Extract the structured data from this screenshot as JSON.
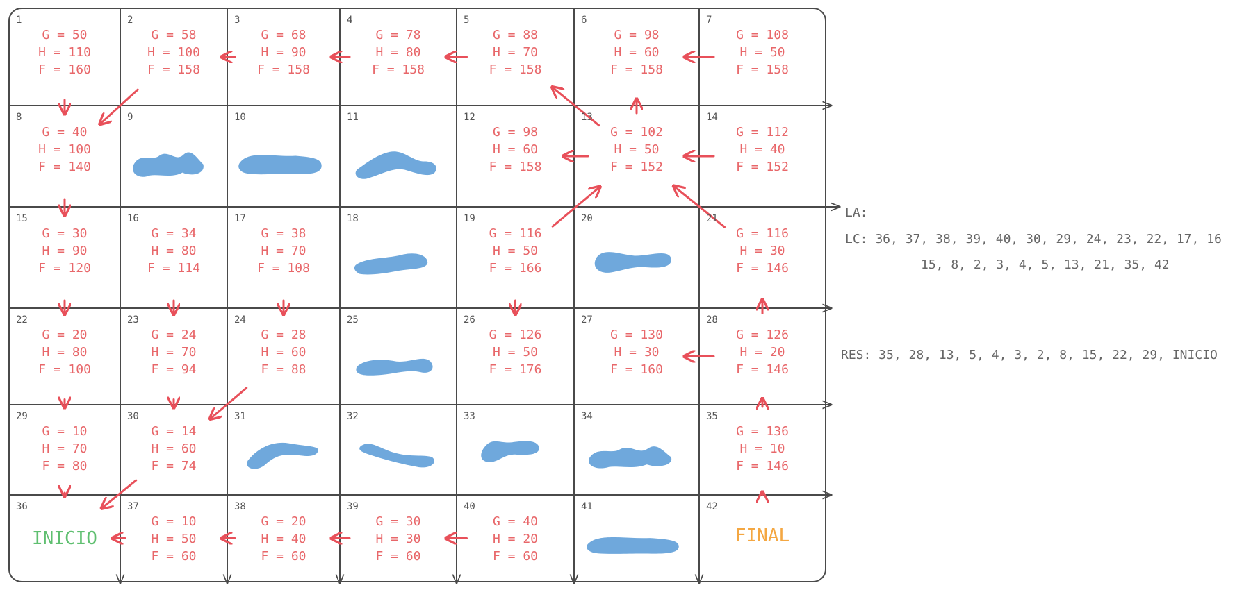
{
  "cells": [
    {
      "n": "1",
      "g": "G = 50",
      "h": "H = 110",
      "f": "F = 160"
    },
    {
      "n": "2",
      "g": "G = 58",
      "h": "H = 100",
      "f": "F = 158"
    },
    {
      "n": "3",
      "g": "G = 68",
      "h": "H = 90",
      "f": "F = 158"
    },
    {
      "n": "4",
      "g": "G = 78",
      "h": "H = 80",
      "f": "F = 158"
    },
    {
      "n": "5",
      "g": "G = 88",
      "h": "H = 70",
      "f": "F = 158"
    },
    {
      "n": "6",
      "g": "G = 98",
      "h": "H = 60",
      "f": "F = 158"
    },
    {
      "n": "7",
      "g": "G = 108",
      "h": "H = 50",
      "f": "F = 158"
    },
    {
      "n": "8",
      "g": "G = 40",
      "h": "H = 100",
      "f": "F = 140"
    },
    {
      "n": "9",
      "wall": true
    },
    {
      "n": "10",
      "wall": true
    },
    {
      "n": "11",
      "wall": true
    },
    {
      "n": "12",
      "g": "G = 98",
      "h": "H = 60",
      "f": "F = 158"
    },
    {
      "n": "13",
      "g": "G = 102",
      "h": "H = 50",
      "f": "F = 152"
    },
    {
      "n": "14",
      "g": "G = 112",
      "h": "H = 40",
      "f": "F = 152"
    },
    {
      "n": "15",
      "g": "G = 30",
      "h": "H = 90",
      "f": "F = 120"
    },
    {
      "n": "16",
      "g": "G = 34",
      "h": "H = 80",
      "f": "F = 114"
    },
    {
      "n": "17",
      "g": "G = 38",
      "h": "H = 70",
      "f": "F = 108"
    },
    {
      "n": "18",
      "wall": true
    },
    {
      "n": "19",
      "g": "G = 116",
      "h": "H = 50",
      "f": "F = 166"
    },
    {
      "n": "20",
      "wall": true
    },
    {
      "n": "21",
      "g": "G = 116",
      "h": "H = 30",
      "f": "F = 146"
    },
    {
      "n": "22",
      "g": "G = 20",
      "h": "H = 80",
      "f": "F = 100"
    },
    {
      "n": "23",
      "g": "G = 24",
      "h": "H = 70",
      "f": "F = 94"
    },
    {
      "n": "24",
      "g": "G = 28",
      "h": "H = 60",
      "f": "F = 88"
    },
    {
      "n": "25",
      "wall": true
    },
    {
      "n": "26",
      "g": "G = 126",
      "h": "H = 50",
      "f": "F = 176"
    },
    {
      "n": "27",
      "g": "G = 130",
      "h": "H = 30",
      "f": "F = 160"
    },
    {
      "n": "28",
      "g": "G = 126",
      "h": "H = 20",
      "f": "F = 146"
    },
    {
      "n": "29",
      "g": "G = 10",
      "h": "H = 70",
      "f": "F = 80"
    },
    {
      "n": "30",
      "g": "G = 14",
      "h": "H = 60",
      "f": "F = 74"
    },
    {
      "n": "31",
      "wall": true
    },
    {
      "n": "32",
      "wall": true
    },
    {
      "n": "33",
      "wall": true
    },
    {
      "n": "34",
      "wall": true
    },
    {
      "n": "35",
      "g": "G = 136",
      "h": "H = 10",
      "f": "F = 146"
    },
    {
      "n": "36",
      "label": "INICIO"
    },
    {
      "n": "37",
      "g": "G = 10",
      "h": "H = 50",
      "f": "F = 60"
    },
    {
      "n": "38",
      "g": "G = 20",
      "h": "H = 40",
      "f": "F = 60"
    },
    {
      "n": "39",
      "g": "G = 30",
      "h": "H = 30",
      "f": "F = 60"
    },
    {
      "n": "40",
      "g": "G = 40",
      "h": "H = 20",
      "f": "F = 60"
    },
    {
      "n": "41",
      "wall": true
    },
    {
      "n": "42",
      "label": "FINAL"
    }
  ],
  "arrows": [
    {
      "from": "1",
      "to": "8"
    },
    {
      "from": "2",
      "to": "8"
    },
    {
      "from": "3",
      "to": "2"
    },
    {
      "from": "4",
      "to": "3"
    },
    {
      "from": "5",
      "to": "4"
    },
    {
      "from": "7",
      "to": "6"
    },
    {
      "from": "8",
      "to": "15"
    },
    {
      "from": "13",
      "to": "5"
    },
    {
      "from": "13",
      "to": "6"
    },
    {
      "from": "13",
      "to": "12"
    },
    {
      "from": "14",
      "to": "13"
    },
    {
      "from": "15",
      "to": "22"
    },
    {
      "from": "16",
      "to": "23"
    },
    {
      "from": "17",
      "to": "24"
    },
    {
      "from": "19",
      "to": "13"
    },
    {
      "from": "19",
      "to": "26"
    },
    {
      "from": "21",
      "to": "13"
    },
    {
      "from": "22",
      "to": "29"
    },
    {
      "from": "23",
      "to": "30"
    },
    {
      "from": "24",
      "to": "30"
    },
    {
      "from": "28",
      "to": "21"
    },
    {
      "from": "28",
      "to": "27"
    },
    {
      "from": "29",
      "to": "36"
    },
    {
      "from": "30",
      "to": "36"
    },
    {
      "from": "35",
      "to": "28"
    },
    {
      "from": "37",
      "to": "36"
    },
    {
      "from": "38",
      "to": "37"
    },
    {
      "from": "39",
      "to": "38"
    },
    {
      "from": "40",
      "to": "39"
    },
    {
      "from": "42",
      "to": "35"
    }
  ],
  "side": {
    "la": "LA:",
    "lc_line1": "LC: 36, 37, 38, 39, 40, 30, 29, 24, 23, 22, 17, 16",
    "lc_line2": "15, 8, 2, 3, 4, 5, 13, 21, 35, 42",
    "res": "RES: 35, 28, 13, 5, 4, 3, 2, 8, 15, 22, 29, INICIO"
  },
  "colors": {
    "grid": "#4a4a4a",
    "text": "#e8676a",
    "arrow": "#e8505a",
    "wall": "#6fa8dc",
    "start": "#5fbf70",
    "end": "#f4a742"
  }
}
